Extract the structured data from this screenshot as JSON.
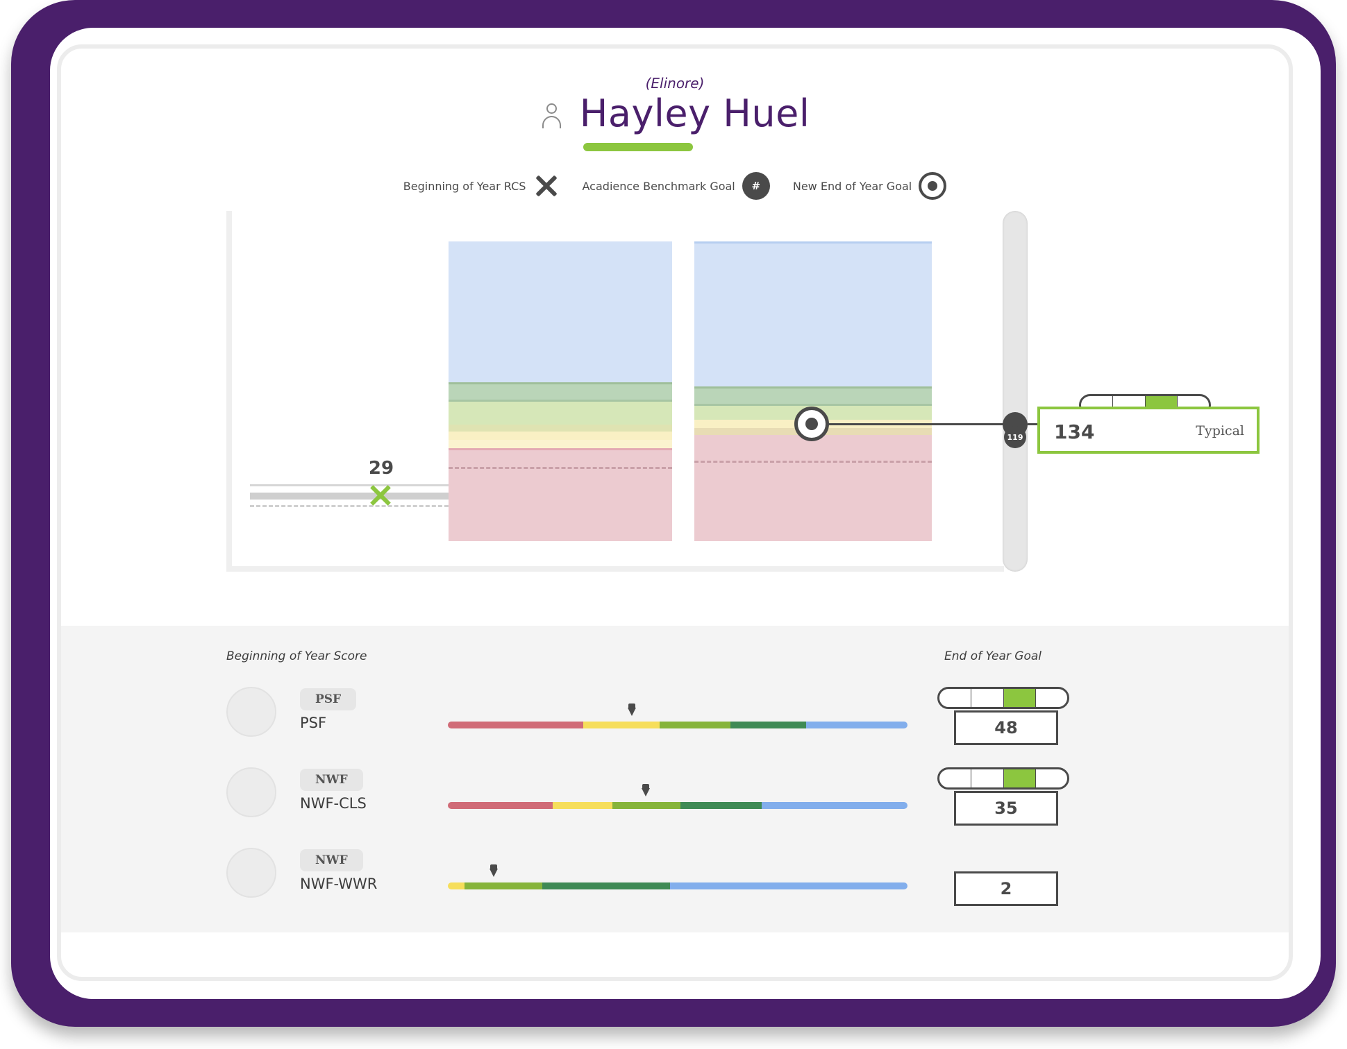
{
  "student": {
    "nickname": "(Elinore)",
    "name": "Hayley Huel"
  },
  "legend": {
    "boy_rcs": "Beginning of Year RCS",
    "benchmark_goal": "Acadience Benchmark Goal",
    "benchmark_symbol": "#",
    "new_eoy_goal": "New End of Year Goal"
  },
  "chart": {
    "boy_score": "29",
    "slider_value": "119",
    "colors": {
      "blue": "#d4e2f7",
      "green_dark": "#bad5b8",
      "green_light": "#d6e7b8",
      "yellow": "#f9f0c4",
      "red": "#eccbd0"
    }
  },
  "goal_box": {
    "value": "134",
    "level": "Typical",
    "pill_active_index": 2
  },
  "bottom": {
    "boy_header": "Beginning of Year Score",
    "eoy_header": "End of Year Goal",
    "measures": [
      {
        "badge": "PSF",
        "name": "PSF",
        "goal": "48",
        "has_pill": true,
        "pointer_fraction": 0.4,
        "segments": [
          {
            "color": "#d06b77",
            "share": 0.295
          },
          {
            "color": "#f6de5b",
            "share": 0.165
          },
          {
            "color": "#86b43a",
            "share": 0.155
          },
          {
            "color": "#3f8a55",
            "share": 0.165
          },
          {
            "color": "#82aeec",
            "share": 0.22
          }
        ]
      },
      {
        "badge": "NWF",
        "name": "NWF-CLS",
        "goal": "35",
        "has_pill": true,
        "pointer_fraction": 0.43,
        "segments": [
          {
            "color": "#d06b77",
            "share": 0.228
          },
          {
            "color": "#f6de5b",
            "share": 0.13
          },
          {
            "color": "#86b43a",
            "share": 0.148
          },
          {
            "color": "#3f8a55",
            "share": 0.177
          },
          {
            "color": "#82aeec",
            "share": 0.317
          }
        ]
      },
      {
        "badge": "NWF",
        "name": "NWF-WWR",
        "goal": "2",
        "has_pill": false,
        "pointer_fraction": 0.1,
        "segments": [
          {
            "color": "#f6de5b",
            "share": 0.037
          },
          {
            "color": "#86b43a",
            "share": 0.168
          },
          {
            "color": "#3f8a55",
            "share": 0.278
          },
          {
            "color": "#82aeec",
            "share": 0.517
          }
        ]
      }
    ]
  }
}
